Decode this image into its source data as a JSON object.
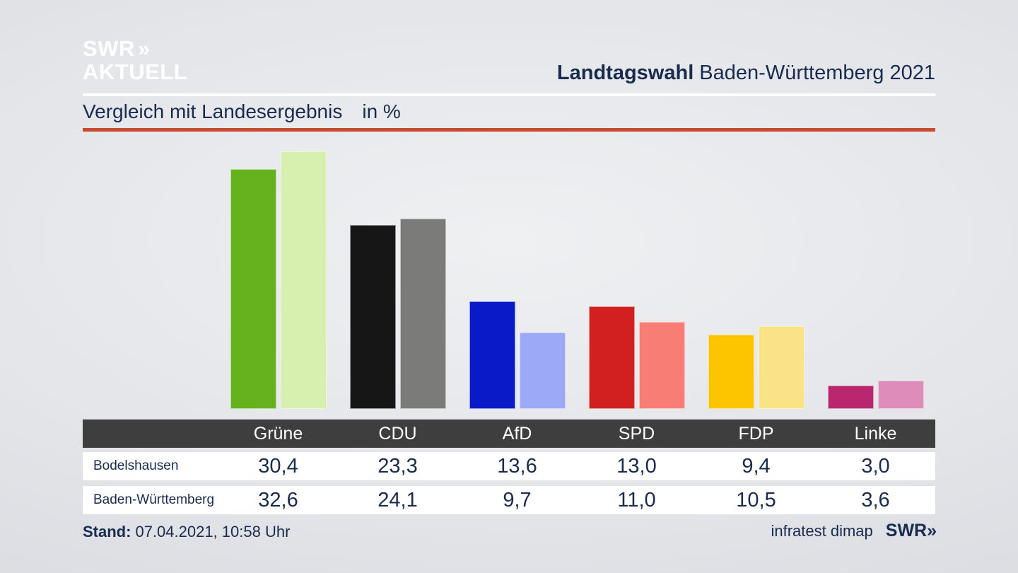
{
  "header": {
    "logo_line1": "SWR",
    "logo_chevrons": "»",
    "logo_line2": "AKTUELL",
    "title_bold": "Landtagswahl",
    "title_rest": " Baden-Württemberg 2021",
    "subtitle": "Vergleich mit Landesergebnis",
    "subtitle_unit": "in %"
  },
  "chart_data": {
    "type": "bar",
    "title": "Vergleich mit Landesergebnis in %",
    "categories": [
      "Grüne",
      "CDU",
      "AfD",
      "SPD",
      "FDP",
      "Linke"
    ],
    "series": [
      {
        "name": "Bodelshausen",
        "values": [
          30.4,
          23.3,
          13.6,
          13.0,
          9.4,
          3.0
        ],
        "colors": [
          "#65b21e",
          "#161616",
          "#0a1ac8",
          "#d22020",
          "#fdc500",
          "#b9276f"
        ]
      },
      {
        "name": "Baden-Württemberg",
        "values": [
          32.6,
          24.1,
          9.7,
          11.0,
          10.5,
          3.6
        ],
        "colors": [
          "#d7f0b0",
          "#7b7b79",
          "#9ba9f7",
          "#f87d74",
          "#fae287",
          "#de8cba"
        ]
      }
    ],
    "ylabel": "in %",
    "ylim": [
      0,
      32.6
    ],
    "grid": false,
    "legend_position": "table-below"
  },
  "table": {
    "header": [
      "Grüne",
      "CDU",
      "AfD",
      "SPD",
      "FDP",
      "Linke"
    ],
    "rows": [
      {
        "label": "Bodelshausen",
        "values": [
          "30,4",
          "23,3",
          "13,6",
          "13,0",
          "9,4",
          "3,0"
        ]
      },
      {
        "label": "Baden-Württemberg",
        "values": [
          "32,6",
          "24,1",
          "9,7",
          "11,0",
          "10,5",
          "3,6"
        ]
      }
    ]
  },
  "footer": {
    "stand_label": "Stand:",
    "stand_value": "07.04.2021, 10:58 Uhr",
    "source": "infratest dimap",
    "swr_logo": "SWR",
    "swr_chevrons": "»"
  },
  "colors": {
    "navy_text": "#192c4f",
    "red_rule": "#c74b2e",
    "table_header_bg": "#3e3e3e",
    "row_bg": "#ffffff",
    "logo_white": "#ffffff"
  }
}
